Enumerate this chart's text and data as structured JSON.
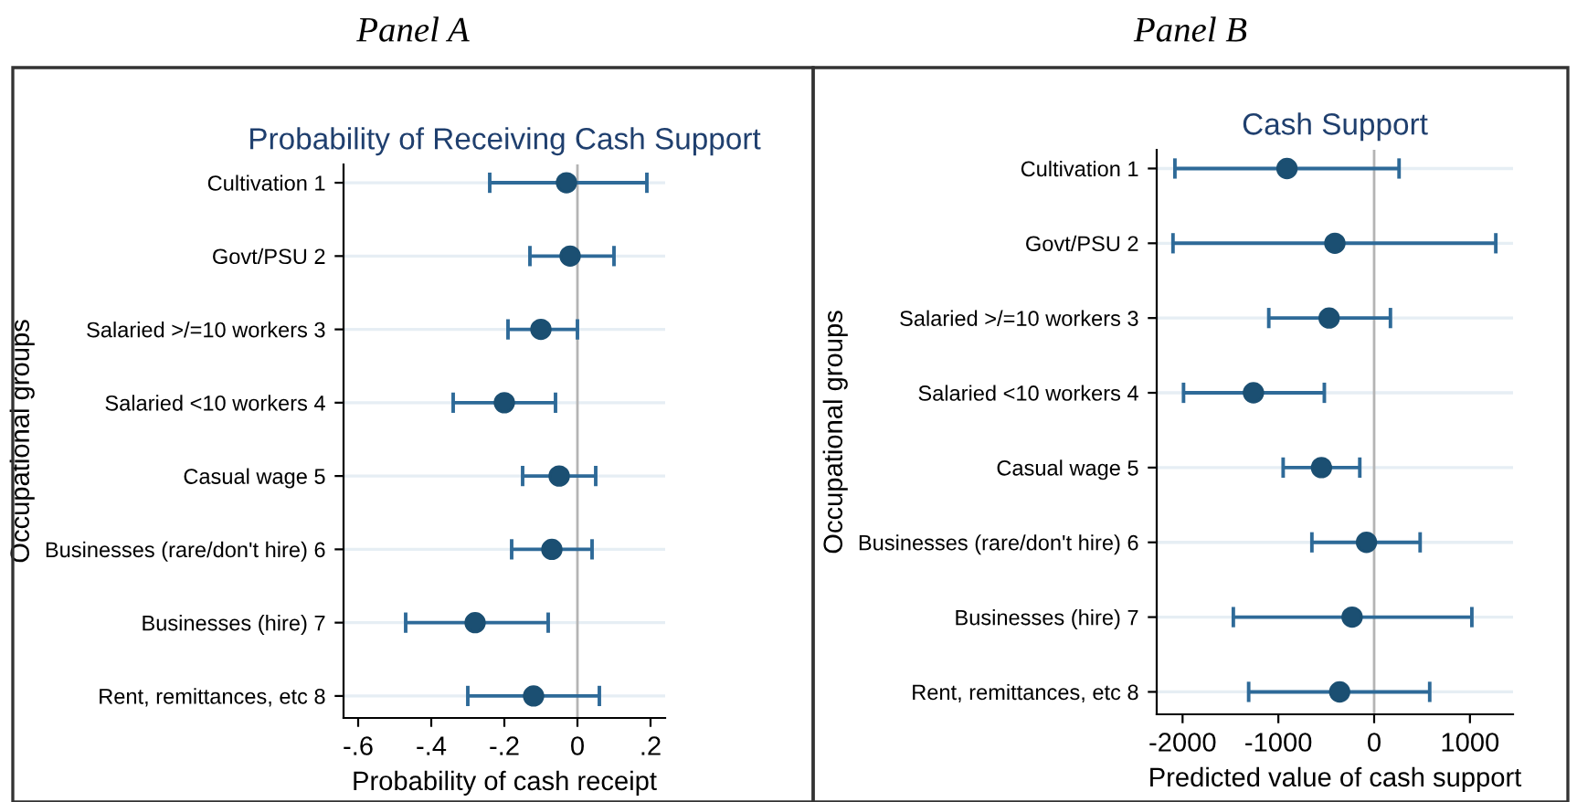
{
  "chart_data": [
    {
      "type": "scatter",
      "orientation": "horizontal",
      "title": "Probability of Receiving Cash Support",
      "annotations": [
        "Panel A"
      ],
      "xlabel": "Probability of cash receipt",
      "ylabel": "Occupational groups",
      "categories": [
        "Cultivation 1",
        "Govt/PSU 2",
        "Salaried >/=10 workers 3",
        "Salaried <10 workers 4",
        "Casual wage 5",
        "Businesses (rare/don't hire) 6",
        "Businesses (hire) 7",
        "Rent, remittances, etc 8"
      ],
      "color": "#1b4f72",
      "values": [
        -0.03,
        -0.02,
        -0.1,
        -0.2,
        -0.05,
        -0.07,
        -0.28,
        -0.12
      ],
      "errors": [
        [
          -0.24,
          0.19
        ],
        [
          -0.13,
          0.1
        ],
        [
          -0.19,
          0.0
        ],
        [
          -0.34,
          -0.06
        ],
        [
          -0.15,
          0.05
        ],
        [
          -0.18,
          0.04
        ],
        [
          -0.47,
          -0.08
        ],
        [
          -0.3,
          0.06
        ]
      ],
      "xlim": [
        -0.64,
        0.24
      ],
      "xticks": [
        {
          "value": -0.6,
          "label": "-.6"
        },
        {
          "value": -0.4,
          "label": "-.4"
        },
        {
          "value": -0.2,
          "label": "-.2"
        },
        0,
        {
          "value": 0.2,
          "label": ".2"
        }
      ],
      "ref_lines": [
        {
          "axis": "x",
          "value": 0,
          "color": "#b4b4b4"
        }
      ],
      "grid": "y",
      "marker": "circle"
    },
    {
      "type": "scatter",
      "orientation": "horizontal",
      "title": "Cash Support",
      "annotations": [
        "Panel B"
      ],
      "xlabel": "Predicted value of cash support",
      "ylabel": "Occupational groups",
      "categories": [
        "Cultivation 1",
        "Govt/PSU 2",
        "Salaried >/=10 workers 3",
        "Salaried <10 workers 4",
        "Casual wage 5",
        "Businesses (rare/don't hire) 6",
        "Businesses (hire) 7",
        "Rent, remittances, etc 8"
      ],
      "color": "#1b4f72",
      "values": [
        -910,
        -410,
        -470,
        -1260,
        -550,
        -80,
        -230,
        -360
      ],
      "errors": [
        [
          -2080,
          260
        ],
        [
          -2100,
          1270
        ],
        [
          -1100,
          170
        ],
        [
          -1990,
          -520
        ],
        [
          -950,
          -150
        ],
        [
          -650,
          480
        ],
        [
          -1470,
          1020
        ],
        [
          -1310,
          580
        ]
      ],
      "xlim": [
        -2270,
        1450
      ],
      "xticks": [
        -2000,
        -1000,
        0,
        1000
      ],
      "ref_lines": [
        {
          "axis": "x",
          "value": 0,
          "color": "#b4b4b4"
        }
      ],
      "grid": "y",
      "marker": "circle"
    }
  ]
}
